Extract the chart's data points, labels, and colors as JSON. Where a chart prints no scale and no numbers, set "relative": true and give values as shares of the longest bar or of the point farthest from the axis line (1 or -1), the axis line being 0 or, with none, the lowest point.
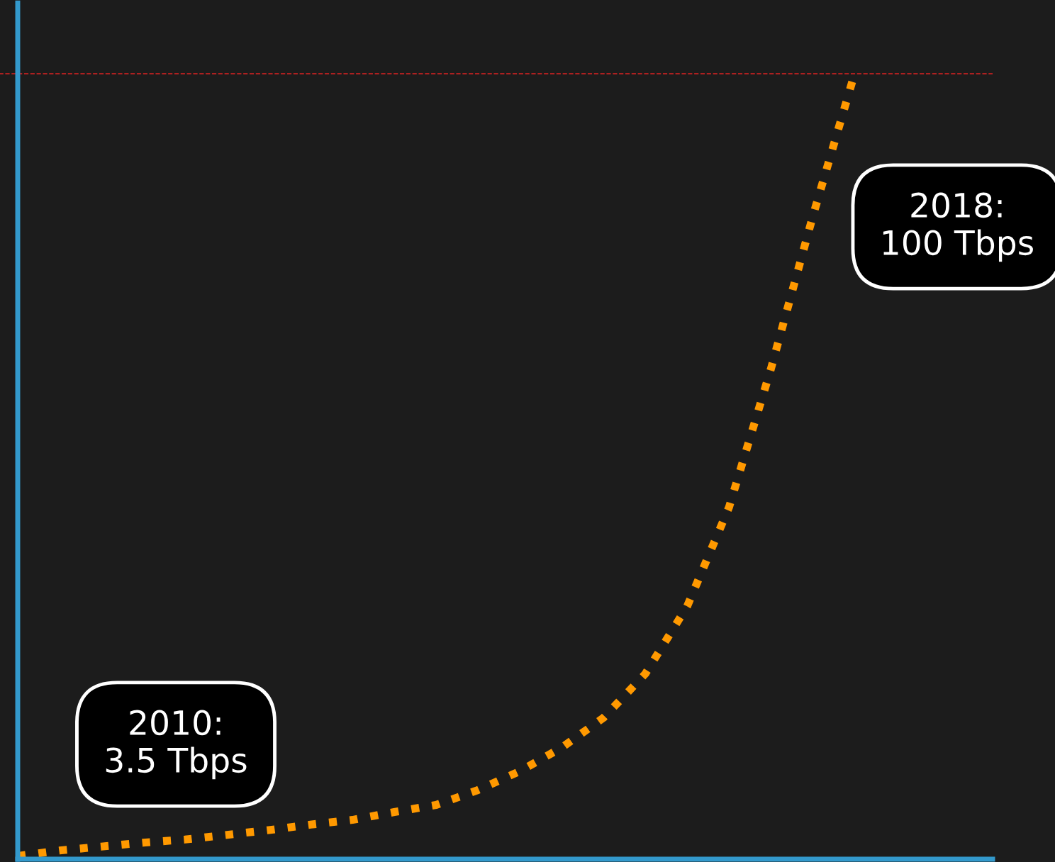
{
  "chart_data": {
    "type": "line",
    "relative": true,
    "categories": [
      null,
      null,
      null,
      null,
      null,
      null,
      null,
      null,
      null,
      null,
      null,
      null,
      null,
      null,
      null,
      null,
      null,
      null,
      null,
      null,
      null
    ],
    "series": [
      {
        "color": "#ff9900",
        "values": [
          0.004,
          0.011,
          0.016,
          0.021,
          0.025,
          0.031,
          0.037,
          0.044,
          0.05,
          0.06,
          0.069,
          0.088,
          0.112,
          0.142,
          0.18,
          0.236,
          0.322,
          0.448,
          0.624,
          0.818,
          1
        ]
      }
    ],
    "line_style": "dotted",
    "marker": "none",
    "grid": false,
    "legend": false,
    "ref_lines": [
      {
        "axis": "y",
        "value": 1,
        "color": "#dd2222",
        "line_style": "dashed"
      }
    ],
    "annotations": [
      "2010:\n3.5 Tbps",
      "2018:\n100 Tbps"
    ]
  }
}
